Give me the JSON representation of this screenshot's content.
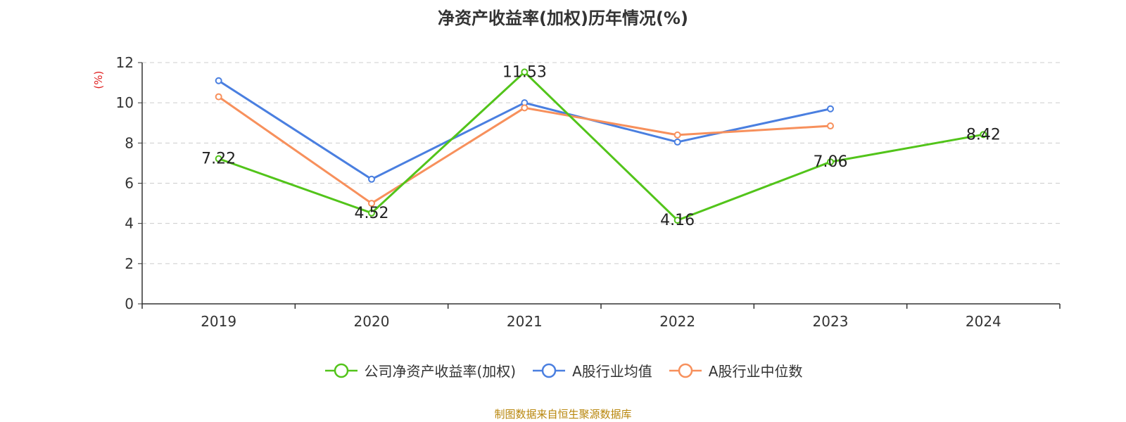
{
  "title": "净资产收益率(加权)历年情况(%)",
  "source": "制图数据来自恒生聚源数据库",
  "colors": {
    "company": "#52c41a",
    "industry_mean": "#4a7fe0",
    "industry_median": "#f7905c",
    "axis": "#333333",
    "grid": "#cccccc",
    "ylabel": "#e02020"
  },
  "chart_data": {
    "type": "line",
    "title": "净资产收益率(加权)历年情况(%)",
    "xlabel": "",
    "ylabel": "(%)",
    "ylim": [
      0,
      12
    ],
    "yticks": [
      0,
      2,
      4,
      6,
      8,
      10,
      12
    ],
    "grid": true,
    "legend_position": "bottom",
    "categories": [
      "2019",
      "2020",
      "2021",
      "2022",
      "2023",
      "2024"
    ],
    "series": [
      {
        "name": "公司净资产收益率(加权)",
        "key": "company",
        "values": [
          7.22,
          4.52,
          11.53,
          4.16,
          7.06,
          8.42
        ],
        "labels": [
          "7.22",
          "4.52",
          "11.53",
          "4.16",
          "7.06",
          "8.42"
        ]
      },
      {
        "name": "A股行业均值",
        "key": "industry_mean",
        "values": [
          11.1,
          6.2,
          10.0,
          8.05,
          9.7,
          null
        ]
      },
      {
        "name": "A股行业中位数",
        "key": "industry_median",
        "values": [
          10.3,
          5.0,
          9.75,
          8.4,
          8.85,
          null
        ]
      }
    ]
  }
}
